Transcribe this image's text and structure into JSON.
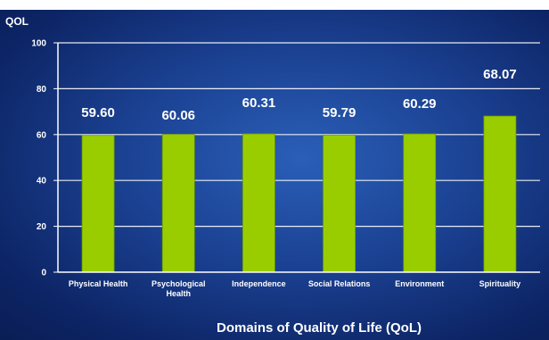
{
  "chart_data": {
    "type": "bar",
    "title": "",
    "ylabel": "QOL",
    "xlabel": "Domains of Quality of Life (QoL)",
    "ylim": [
      0,
      100
    ],
    "yticks": [
      0,
      20,
      40,
      60,
      80,
      100
    ],
    "grid": true,
    "categories": [
      [
        "Physical Health"
      ],
      [
        "Psychological",
        "Health"
      ],
      [
        "Independence"
      ],
      [
        "Social Relations"
      ],
      [
        "Environment"
      ],
      [
        "Spirituality"
      ]
    ],
    "values": [
      59.6,
      60.06,
      60.31,
      59.79,
      60.29,
      68.07
    ],
    "value_labels": [
      "59.60",
      "60.06",
      "60.31",
      "59.79",
      "60.29",
      "68.07"
    ],
    "colors": {
      "bar": "#9acd00",
      "bar_edge": "#6f9a00",
      "axis": "#ffffff",
      "text": "#ffffff"
    }
  }
}
